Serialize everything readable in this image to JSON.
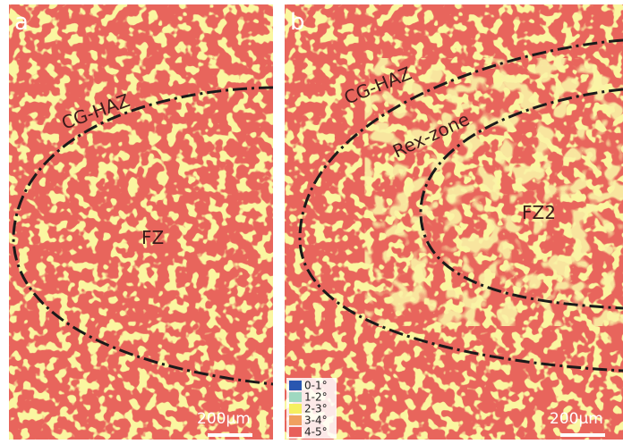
{
  "panels": [
    {
      "label": "a",
      "annotations": [
        "CG-HAZ",
        "FZ"
      ],
      "scale_bar": "200μm"
    },
    {
      "label": "b",
      "annotations": [
        "CG-HAZ",
        "Rex-zone",
        "FZ2"
      ],
      "scale_bar": "200μm",
      "legend": [
        {
          "label": "0-1°",
          "color": "#2a56b0"
        },
        {
          "label": "1-2°",
          "color": "#9fd8c0"
        },
        {
          "label": "2-3°",
          "color": "#f5f060"
        },
        {
          "label": "3-4°",
          "color": "#f0a060"
        },
        {
          "label": "4-5°",
          "color": "#e8605a"
        }
      ]
    }
  ]
}
